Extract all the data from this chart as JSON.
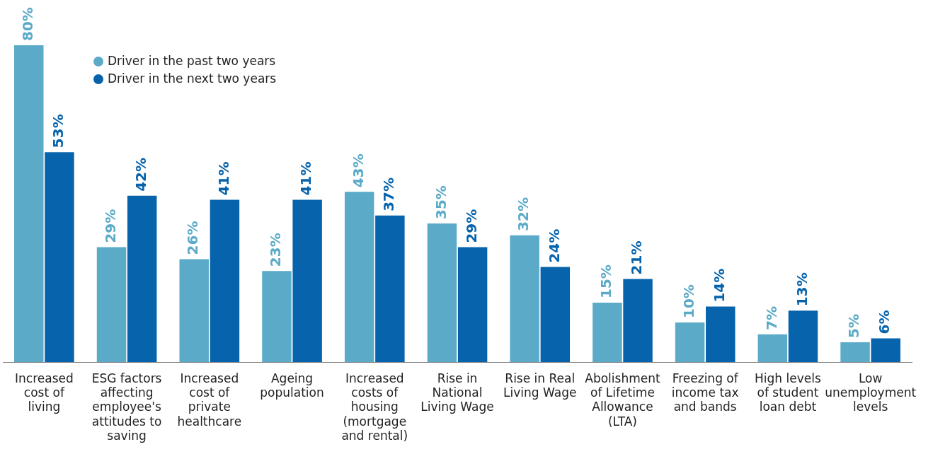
{
  "chart_data": {
    "type": "bar",
    "categories": [
      "Increased cost of living",
      "ESG factors affecting employee's attitudes to saving",
      "Increased cost of private healthcare",
      "Ageing population",
      "Increased costs of housing (mortgage and rental)",
      "Rise in National Living Wage",
      "Rise in Real Living Wage",
      "Abolishment of Lifetime Allowance (LTA)",
      "Freezing of income tax and bands",
      "High levels of student loan debt",
      "Low unemployment levels"
    ],
    "series": [
      {
        "name": "Driver in the past two years",
        "color": "#5aaac8",
        "values": [
          80,
          29,
          26,
          23,
          43,
          35,
          32,
          15,
          10,
          7,
          5
        ],
        "value_labels": [
          "80%",
          "29%",
          "26%",
          "23%",
          "43%",
          "35%",
          "32%",
          "15%",
          "10%",
          "7%",
          "5%"
        ]
      },
      {
        "name": "Driver in the next two years",
        "color": "#0663ac",
        "values": [
          53,
          42,
          41,
          41,
          37,
          29,
          24,
          21,
          14,
          13,
          6
        ],
        "value_labels": [
          "53%",
          "42%",
          "41%",
          "41%",
          "37%",
          "29%",
          "24%",
          "21%",
          "14%",
          "13%",
          "6%"
        ]
      }
    ],
    "grid": false,
    "legend": "top left"
  }
}
